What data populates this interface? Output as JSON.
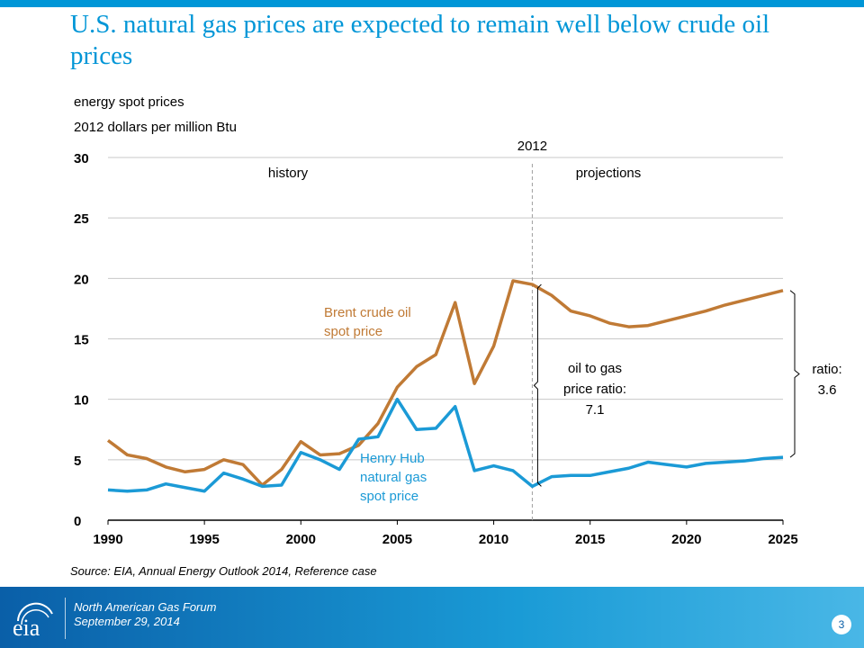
{
  "title": "U.S. natural gas prices are expected to remain well below crude oil prices",
  "subtitle_line1": "energy spot prices",
  "subtitle_line2": "2012 dollars per million Btu",
  "source": "Source:  EIA, Annual Energy Outlook 2014, Reference case",
  "footer": {
    "event": "North American Gas Forum",
    "date": "September 29, 2014",
    "page_number": "3",
    "logo_text": "eia"
  },
  "colors": {
    "brand_blue": "#0096d7",
    "brent": "#c07a35",
    "henry_hub": "#1b9ad6"
  },
  "chart_data": {
    "type": "line",
    "xlim": [
      1990,
      2025
    ],
    "ylim": [
      0,
      30
    ],
    "x_ticks": [
      "1990",
      "1995",
      "2000",
      "2005",
      "2010",
      "2015",
      "2020",
      "2025"
    ],
    "y_ticks": [
      "0",
      "5",
      "10",
      "15",
      "20",
      "25",
      "30"
    ],
    "grid": "horizontal",
    "x": [
      1990,
      1991,
      1992,
      1993,
      1994,
      1995,
      1996,
      1997,
      1998,
      1999,
      2000,
      2001,
      2002,
      2003,
      2004,
      2005,
      2006,
      2007,
      2008,
      2009,
      2010,
      2011,
      2012,
      2013,
      2014,
      2015,
      2016,
      2017,
      2018,
      2019,
      2020,
      2021,
      2022,
      2023,
      2024,
      2025
    ],
    "series": [
      {
        "name": "Brent crude oil spot price",
        "label_lines": [
          "Brent crude oil",
          "spot price"
        ],
        "values": [
          6.6,
          5.4,
          5.1,
          4.4,
          4.0,
          4.2,
          5.0,
          4.6,
          2.9,
          4.2,
          6.5,
          5.4,
          5.5,
          6.2,
          8.0,
          11.0,
          12.7,
          13.7,
          18.0,
          11.3,
          14.4,
          19.8,
          19.5,
          18.6,
          17.3,
          16.9,
          16.3,
          16.0,
          16.1,
          16.5,
          16.9,
          17.3,
          17.8,
          18.2,
          18.6,
          19.0
        ]
      },
      {
        "name": "Henry Hub natural gas spot price",
        "label_lines": [
          "Henry Hub",
          "natural gas",
          "spot price"
        ],
        "values": [
          2.5,
          2.4,
          2.5,
          3.0,
          2.7,
          2.4,
          3.9,
          3.4,
          2.8,
          2.9,
          5.6,
          5.0,
          4.2,
          6.7,
          6.9,
          10.0,
          7.5,
          7.6,
          9.4,
          4.1,
          4.5,
          4.1,
          2.8,
          3.6,
          3.7,
          3.7,
          4.0,
          4.3,
          4.8,
          4.6,
          4.4,
          4.7,
          4.8,
          4.9,
          5.1,
          5.2
        ]
      }
    ],
    "divider_year": "2012",
    "history_label": "history",
    "projections_label": "projections",
    "annotations": [
      {
        "lines": [
          "oil to gas",
          "price ratio:",
          "7.1"
        ],
        "year": 2012
      },
      {
        "lines": [
          "ratio:",
          "3.6"
        ],
        "year": 2025
      }
    ]
  }
}
